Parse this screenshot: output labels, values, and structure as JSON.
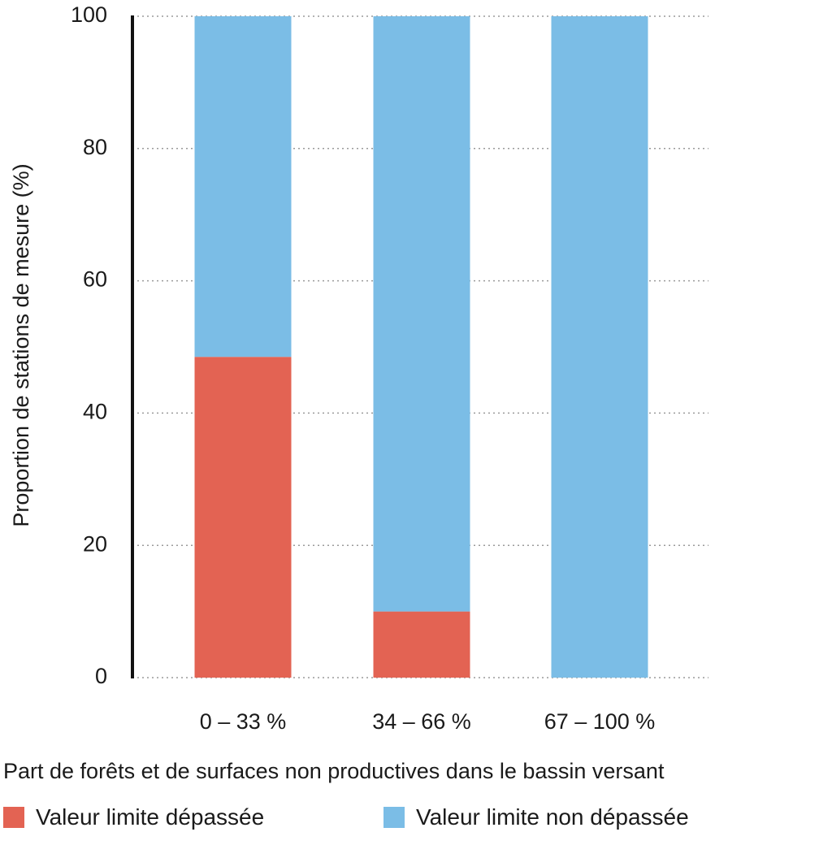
{
  "chart_data": {
    "type": "bar",
    "stacked": true,
    "categories": [
      "0 – 33 %",
      "34 – 66 %",
      "67 – 100 %"
    ],
    "series": [
      {
        "name": "Valeur limite dépassée",
        "color": "#e36353",
        "values": [
          48.5,
          10,
          0
        ]
      },
      {
        "name": "Valeur limite non dépassée",
        "color": "#7bbde6",
        "values": [
          51.5,
          90,
          100
        ]
      }
    ],
    "xlabel": "Part de forêts et de surfaces non productives dans le bassin versant",
    "ylabel": "Proportion de stations de mesure (%)",
    "ylim": [
      0,
      100
    ],
    "yticks": [
      0,
      20,
      40,
      60,
      80,
      100
    ],
    "grid": "horizontal-dotted",
    "legend_position": "bottom"
  }
}
